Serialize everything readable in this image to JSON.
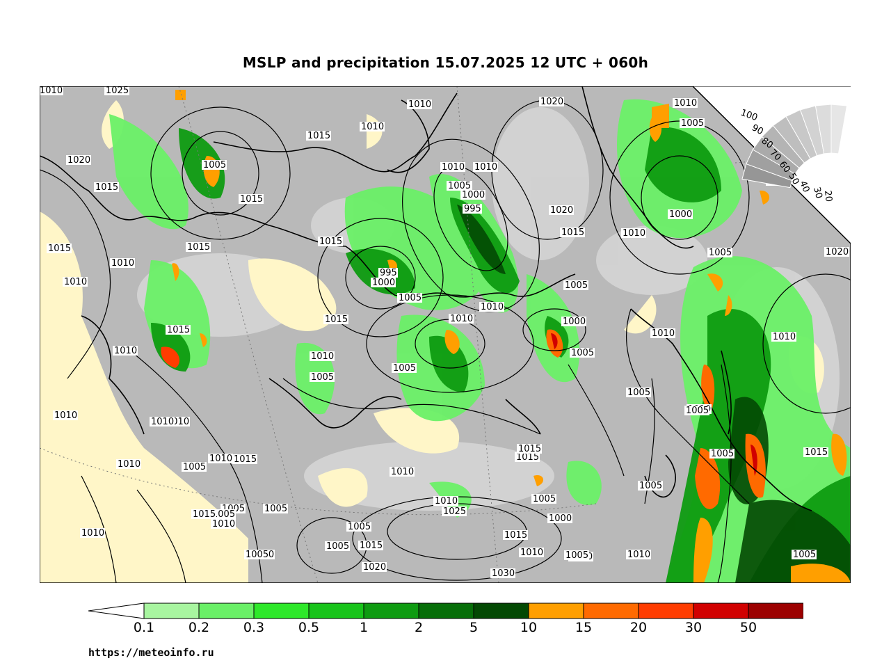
{
  "title": "MSLP and precipitation 15.07.2025 12 UTC + 060h",
  "watermark": "https://meteoinfo.ru",
  "colorbar": {
    "levels": [
      "0.1",
      "0.2",
      "0.3",
      "0.5",
      "1",
      "2",
      "5",
      "10",
      "15",
      "20",
      "30",
      "50"
    ],
    "colors": [
      "#ffffff",
      "#a8f5a0",
      "#6af067",
      "#2ee82a",
      "#18c41a",
      "#0e9b11",
      "#076e09",
      "#034903",
      "#ff9f00",
      "#ff6a00",
      "#ff3c00",
      "#d10000",
      "#9c0000",
      "#000000"
    ]
  },
  "lat_scale": [
    "100",
    "90",
    "80",
    "70",
    "60",
    "50",
    "40",
    "30",
    "20"
  ],
  "isobar_labels": [
    {
      "t": "1025"
    },
    {
      "t": "1010"
    },
    {
      "t": "1015"
    },
    {
      "t": "1010"
    },
    {
      "t": "1020"
    },
    {
      "t": "1010"
    },
    {
      "t": "1005"
    },
    {
      "t": "1020"
    },
    {
      "t": "1005"
    },
    {
      "t": "1015"
    },
    {
      "t": "1015"
    },
    {
      "t": "1010"
    },
    {
      "t": "1005"
    },
    {
      "t": "1000"
    },
    {
      "t": "995"
    },
    {
      "t": "1020"
    },
    {
      "t": "1015"
    },
    {
      "t": "1010"
    },
    {
      "t": "1000"
    },
    {
      "t": "1010"
    },
    {
      "t": "1015"
    },
    {
      "t": "1010"
    },
    {
      "t": "1015"
    },
    {
      "t": "1015"
    },
    {
      "t": "1015"
    },
    {
      "t": "1010"
    },
    {
      "t": "995"
    },
    {
      "t": "1000"
    },
    {
      "t": "1005"
    },
    {
      "t": "1005"
    },
    {
      "t": "1005"
    },
    {
      "t": "1010"
    },
    {
      "t": "1015"
    },
    {
      "t": "1000"
    },
    {
      "t": "1010"
    },
    {
      "t": "1005"
    },
    {
      "t": "1010"
    },
    {
      "t": "1010"
    },
    {
      "t": "1010"
    },
    {
      "t": "1005"
    },
    {
      "t": "1005"
    },
    {
      "t": "1010"
    },
    {
      "t": "1005"
    },
    {
      "t": "1015"
    },
    {
      "t": "1005"
    },
    {
      "t": "1010"
    },
    {
      "t": "1010"
    },
    {
      "t": "1015"
    },
    {
      "t": "1005"
    },
    {
      "t": "1010"
    },
    {
      "t": "1010"
    },
    {
      "t": "1010"
    },
    {
      "t": "1015"
    },
    {
      "t": "1010"
    },
    {
      "t": "1000"
    },
    {
      "t": "1005"
    },
    {
      "t": "1005"
    },
    {
      "t": "1005"
    },
    {
      "t": "1010"
    },
    {
      "t": "1020"
    },
    {
      "t": "1015"
    },
    {
      "t": "1005"
    },
    {
      "t": "1010"
    },
    {
      "t": "1025"
    },
    {
      "t": "1020"
    },
    {
      "t": "1015"
    },
    {
      "t": "1030"
    },
    {
      "t": "1010"
    },
    {
      "t": "1005"
    },
    {
      "t": "1005"
    },
    {
      "t": "1010"
    },
    {
      "t": "1005"
    },
    {
      "t": "1005"
    },
    {
      "t": "1015"
    },
    {
      "t": "1005"
    },
    {
      "t": "1005"
    },
    {
      "t": "1015"
    },
    {
      "t": "1010"
    },
    {
      "t": "1010"
    },
    {
      "t": "1005"
    },
    {
      "t": "1010"
    },
    {
      "t": "1010"
    },
    {
      "t": "1005"
    },
    {
      "t": "1010"
    },
    {
      "t": "1015"
    }
  ]
}
